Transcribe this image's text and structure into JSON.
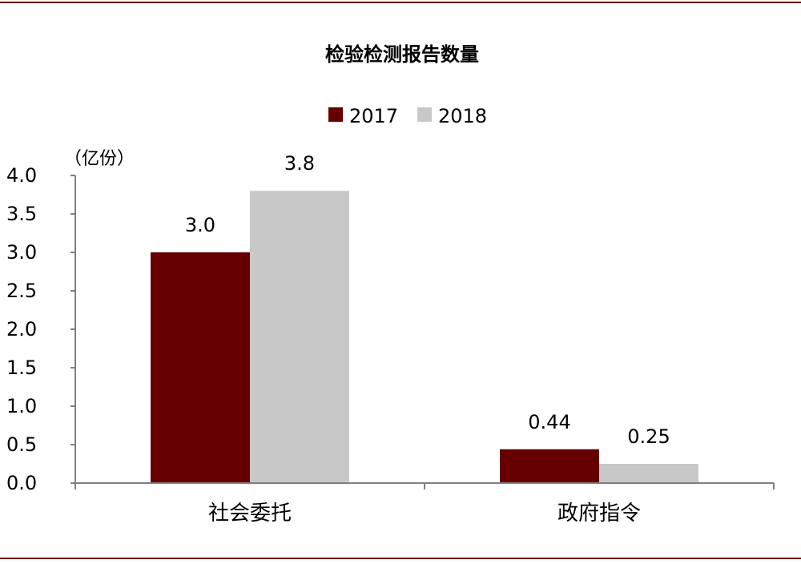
{
  "colors": {
    "rule": "#6b0000",
    "axis": "#808080"
  },
  "chart_data": {
    "type": "bar",
    "title": "检验检测报告数量",
    "ylabel": "（亿份）",
    "categories": [
      "社会委托",
      "政府指令"
    ],
    "series": [
      {
        "name": "2017",
        "values": [
          3.0,
          0.44
        ],
        "labels": [
          "3.0",
          "0.44"
        ],
        "color": "#660000"
      },
      {
        "name": "2018",
        "values": [
          3.8,
          0.25
        ],
        "labels": [
          "3.8",
          "0.25"
        ],
        "color": "#c8c8c8"
      }
    ],
    "ylim": [
      0,
      4.0
    ],
    "yticks": [
      "0.0",
      "0.5",
      "1.0",
      "1.5",
      "2.0",
      "2.5",
      "3.0",
      "3.5",
      "4.0"
    ],
    "grid": false,
    "legend_position": "top-center"
  }
}
